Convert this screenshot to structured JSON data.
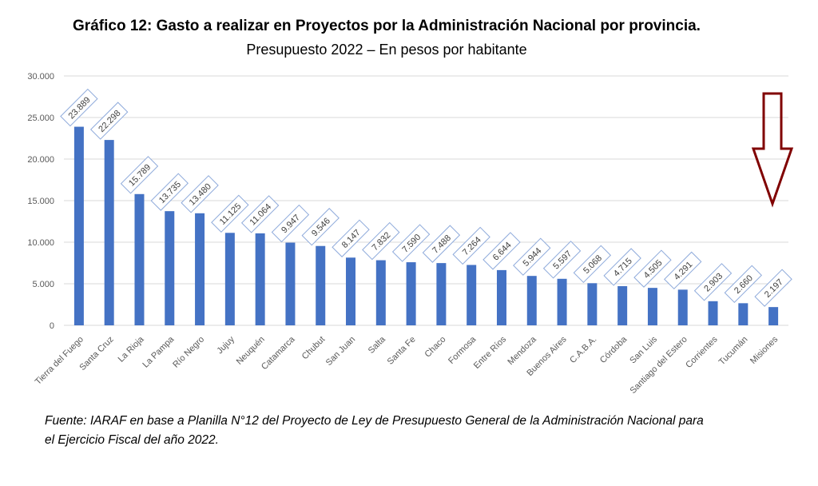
{
  "chart_data": {
    "type": "bar",
    "title": "Gráfico 12: Gasto a realizar en Proyectos por la Administración Nacional por provincia.",
    "subtitle": "Presupuesto 2022 – En pesos por habitante",
    "categories": [
      "Tierra del Fuego",
      "Santa Cruz",
      "La Rioja",
      "La Pampa",
      "Río Negro",
      "Jujuy",
      "Neuquén",
      "Catamarca",
      "Chubut",
      "San Juan",
      "Salta",
      "Santa Fe",
      "Chaco",
      "Formosa",
      "Entre Ríos",
      "Mendoza",
      "Buenos Aires",
      "C.A.B.A.",
      "Córdoba",
      "San Luis",
      "Santiago del Estero",
      "Corrientes",
      "Tucumán",
      "Misiones"
    ],
    "values": [
      23889,
      22298,
      15789,
      13735,
      13480,
      11125,
      11064,
      9947,
      9546,
      8147,
      7832,
      7590,
      7488,
      7264,
      6644,
      5944,
      5597,
      5068,
      4715,
      4505,
      4291,
      2903,
      2660,
      2197
    ],
    "value_labels": [
      "23.889",
      "22.298",
      "15.789",
      "13.735",
      "13.480",
      "11.125",
      "11.064",
      "9.947",
      "9.546",
      "8.147",
      "7.832",
      "7.590",
      "7.488",
      "7.264",
      "6.644",
      "5.944",
      "5.597",
      "5.068",
      "4.715",
      "4.505",
      "4.291",
      "2.903",
      "2.660",
      "2.197"
    ],
    "yticks": [
      0,
      5000,
      10000,
      15000,
      20000,
      25000,
      30000
    ],
    "ytick_labels": [
      "0",
      "5.000",
      "10.000",
      "15.000",
      "20.000",
      "25.000",
      "30.000"
    ],
    "ylim": [
      0,
      30000
    ],
    "grid": true,
    "legend": "none",
    "bar_color": "#4472c4",
    "label_border_color": "#8eaadb",
    "arrow_color": "#800000"
  },
  "source": {
    "line1": "Fuente: IARAF en base a Planilla N°12 del Proyecto de Ley de Presupuesto General de la Administración Nacional para",
    "line2": "el Ejercicio Fiscal del año 2022."
  }
}
